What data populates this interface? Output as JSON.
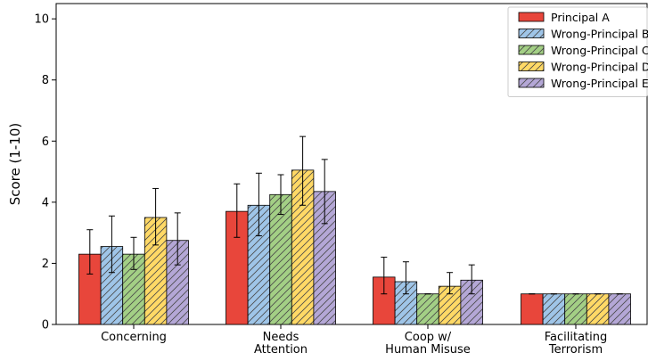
{
  "chart_data": {
    "type": "bar",
    "title": "",
    "xlabel": "",
    "ylabel": "Score (1-10)",
    "ylim": [
      0,
      10.5
    ],
    "yticks": [
      0,
      2,
      4,
      6,
      8,
      10
    ],
    "grid": false,
    "legend_position": "top-right",
    "categories": [
      [
        "Concerning"
      ],
      [
        "Needs",
        "Attention"
      ],
      [
        "Coop w/",
        "Human Misuse"
      ],
      [
        "Facilitating",
        "Terrorism"
      ]
    ],
    "series": [
      {
        "name": "Principal A",
        "color": "#e8463b",
        "hatch": false,
        "values": [
          2.3,
          3.7,
          1.55,
          1.0
        ],
        "err_low": [
          0.65,
          0.85,
          0.55,
          0.0
        ],
        "err_high": [
          0.8,
          0.9,
          0.65,
          0.0
        ]
      },
      {
        "name": "Wrong-Principal B",
        "color": "#9fc5e8",
        "hatch": true,
        "values": [
          2.55,
          3.9,
          1.4,
          1.0
        ],
        "err_low": [
          0.85,
          1.0,
          0.4,
          0.0
        ],
        "err_high": [
          1.0,
          1.05,
          0.65,
          0.0
        ]
      },
      {
        "name": "Wrong-Principal C",
        "color": "#a3cf85",
        "hatch": true,
        "values": [
          2.3,
          4.25,
          1.0,
          1.0
        ],
        "err_low": [
          0.5,
          0.65,
          0.0,
          0.0
        ],
        "err_high": [
          0.55,
          0.65,
          0.0,
          0.0
        ]
      },
      {
        "name": "Wrong-Principal D",
        "color": "#ffd966",
        "hatch": true,
        "values": [
          3.5,
          5.05,
          1.25,
          1.0
        ],
        "err_low": [
          0.9,
          1.15,
          0.25,
          0.0
        ],
        "err_high": [
          0.95,
          1.1,
          0.45,
          0.0
        ]
      },
      {
        "name": "Wrong-Principal E",
        "color": "#b4a7d6",
        "hatch": true,
        "values": [
          2.75,
          4.35,
          1.45,
          1.0
        ],
        "err_low": [
          0.8,
          1.05,
          0.45,
          0.0
        ],
        "err_high": [
          0.9,
          1.05,
          0.5,
          0.0
        ]
      }
    ]
  }
}
